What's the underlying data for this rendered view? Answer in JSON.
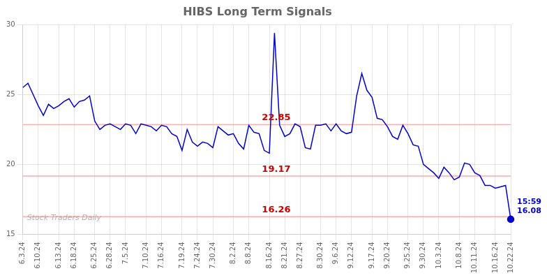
{
  "chart_data": {
    "type": "line",
    "title": "HIBS Long Term Signals",
    "categories": [
      "6.3.24",
      null,
      null,
      "6.10.24",
      null,
      null,
      null,
      "6.13.24",
      null,
      null,
      "6.18.24",
      null,
      null,
      null,
      "6.25.24",
      null,
      null,
      "6.28.24",
      null,
      null,
      "7.5.24",
      null,
      null,
      null,
      "7.10.24",
      null,
      null,
      "7.16.24",
      null,
      null,
      null,
      "7.19.24",
      null,
      null,
      "7.24.24",
      null,
      null,
      "7.30.24",
      null,
      null,
      null,
      "8.2.24",
      null,
      null,
      "8.8.24",
      null,
      null,
      null,
      "8.16.24",
      null,
      null,
      "8.21.24",
      null,
      null,
      "8.27.24",
      null,
      null,
      null,
      "8.30.24",
      null,
      null,
      "9.6.24",
      null,
      null,
      "9.12.24",
      null,
      null,
      null,
      "9.17.24",
      null,
      null,
      "9.20.24",
      null,
      null,
      null,
      "9.25.24",
      null,
      null,
      "9.30.24",
      null,
      null,
      "10.3.24",
      null,
      null,
      null,
      "10.8.24",
      null,
      null,
      "10.11.24",
      null,
      null,
      null,
      "10.16.24",
      null,
      null,
      "10.22.24"
    ],
    "values": [
      25.5,
      25.8,
      25.0,
      24.2,
      23.5,
      24.3,
      24.0,
      24.2,
      24.5,
      24.7,
      24.1,
      24.5,
      24.6,
      24.9,
      23.1,
      22.5,
      22.8,
      22.9,
      22.7,
      22.5,
      22.9,
      22.8,
      22.2,
      22.9,
      22.8,
      22.7,
      22.4,
      22.8,
      22.7,
      22.2,
      22.0,
      21.0,
      22.5,
      21.6,
      21.3,
      21.6,
      21.5,
      21.2,
      22.7,
      22.4,
      22.1,
      22.2,
      21.5,
      21.1,
      22.8,
      22.3,
      22.2,
      21.0,
      20.8,
      29.4,
      22.8,
      22.0,
      22.2,
      22.9,
      22.7,
      21.2,
      21.1,
      22.8,
      22.8,
      22.9,
      22.4,
      22.9,
      22.4,
      22.2,
      22.3,
      24.9,
      26.5,
      25.3,
      24.8,
      23.3,
      23.2,
      22.7,
      22.0,
      21.8,
      22.8,
      22.2,
      21.4,
      21.3,
      20.0,
      19.7,
      19.4,
      19.0,
      19.8,
      19.4,
      18.9,
      19.1,
      20.1,
      20.0,
      19.4,
      19.2,
      18.5,
      18.5,
      18.3,
      18.4,
      18.5,
      16.08
    ],
    "color": "#0000cc",
    "hlines": {
      "values": [
        22.85,
        19.17,
        16.26
      ],
      "color": "#ffaaaa",
      "label_color": "#cc0000"
    },
    "annotations": [
      "15:59\n16.08"
    ],
    "watermark": "Stock Traders Daily",
    "ylim": [
      15,
      30
    ],
    "yticks": [
      15,
      20,
      25,
      30
    ],
    "grid": true
  }
}
